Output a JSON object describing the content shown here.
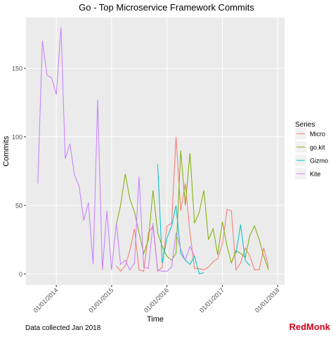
{
  "chart_data": {
    "type": "line",
    "title": "Go - Top Microservice Framework Commits",
    "x_label": "Time",
    "y_label": "Commits",
    "legend_title": "Series",
    "legend_position": "right",
    "caption": "Data collected Jan 2018",
    "logo": "RedMonk",
    "grid": true,
    "x": [
      "2013-09-01",
      "2013-10-01",
      "2013-11-01",
      "2013-12-01",
      "2014-01-01",
      "2014-02-01",
      "2014-03-01",
      "2014-04-01",
      "2014-05-01",
      "2014-06-01",
      "2014-07-01",
      "2014-08-01",
      "2014-09-01",
      "2014-10-01",
      "2014-11-01",
      "2014-12-01",
      "2015-01-01",
      "2015-02-01",
      "2015-03-01",
      "2015-04-01",
      "2015-05-01",
      "2015-06-01",
      "2015-07-01",
      "2015-08-01",
      "2015-09-01",
      "2015-10-01",
      "2015-11-01",
      "2015-12-01",
      "2016-01-01",
      "2016-02-01",
      "2016-03-01",
      "2016-04-01",
      "2016-05-01",
      "2016-06-01",
      "2016-07-01",
      "2016-08-01",
      "2016-09-01",
      "2016-10-01",
      "2016-11-01",
      "2016-12-01",
      "2017-01-01",
      "2017-02-01",
      "2017-03-01",
      "2017-04-01",
      "2017-05-01",
      "2017-06-01",
      "2017-07-01",
      "2017-08-01",
      "2017-09-01",
      "2017-10-01",
      "2017-11-01"
    ],
    "xlim": [
      "2013-06-15",
      "2018-02-15"
    ],
    "xticks": [
      {
        "value": "2014-01-01",
        "label": "01/01/2014"
      },
      {
        "value": "2015-01-01",
        "label": "01/01/2015"
      },
      {
        "value": "2016-01-01",
        "label": "01/01/2016"
      },
      {
        "value": "2017-01-01",
        "label": "01/01/2017"
      },
      {
        "value": "2018-01-01",
        "label": "01/01/2018"
      }
    ],
    "ylim": [
      -8,
      187
    ],
    "yticks": [
      0,
      50,
      100,
      150
    ],
    "series": [
      {
        "name": "Micro",
        "color": "#F8766D",
        "values": [
          null,
          null,
          null,
          null,
          null,
          null,
          null,
          null,
          null,
          null,
          null,
          null,
          null,
          null,
          null,
          null,
          null,
          6,
          2,
          6,
          17,
          33,
          3,
          2,
          30,
          35,
          2,
          5,
          35,
          37,
          100,
          46,
          66,
          30,
          4,
          4,
          3,
          5,
          9,
          11,
          22,
          47,
          46,
          3,
          8,
          19,
          13,
          3,
          3,
          19,
          5
        ]
      },
      {
        "name": "go.kit",
        "color": "#7CAE00",
        "values": [
          null,
          null,
          null,
          null,
          null,
          null,
          null,
          null,
          null,
          null,
          null,
          null,
          null,
          null,
          null,
          null,
          null,
          36,
          50,
          73,
          55,
          45,
          30,
          15,
          25,
          61,
          30,
          20,
          13,
          10,
          15,
          90,
          50,
          88,
          37,
          45,
          61,
          25,
          33,
          14,
          38,
          20,
          8,
          17,
          15,
          12,
          28,
          35,
          25,
          13,
          3
        ]
      },
      {
        "name": "Gizmo",
        "color": "#00BFC4",
        "values": [
          null,
          null,
          null,
          null,
          null,
          null,
          null,
          null,
          null,
          null,
          null,
          null,
          null,
          null,
          null,
          null,
          null,
          null,
          null,
          null,
          null,
          null,
          null,
          null,
          null,
          null,
          80,
          8,
          26,
          35,
          50,
          15,
          10,
          7,
          13,
          0,
          1,
          null,
          null,
          null,
          null,
          null,
          null,
          15,
          36,
          10,
          6,
          null,
          null,
          null,
          null
        ]
      },
      {
        "name": "Kite",
        "color": "#C77CFF",
        "values": [
          66,
          170,
          145,
          143,
          131,
          180,
          84,
          95,
          72,
          64,
          39,
          52,
          7,
          127,
          3,
          46,
          3,
          37,
          7,
          10,
          3,
          8,
          71,
          5,
          4,
          37,
          3,
          2,
          2,
          5,
          30,
          18,
          10,
          20,
          13,
          null,
          null,
          null,
          null,
          null,
          null,
          null,
          null,
          null,
          null,
          null,
          null,
          null,
          null,
          null,
          null
        ]
      }
    ]
  }
}
